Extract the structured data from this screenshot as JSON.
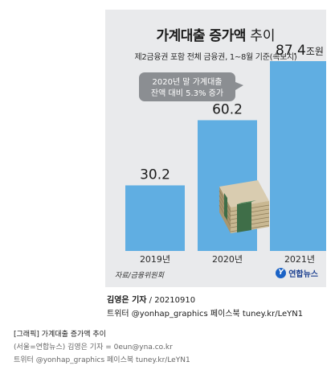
{
  "chart_data": {
    "type": "bar",
    "title_main": "가계대출 증가액",
    "title_suffix": "추이",
    "subtitle": "제2금융권 포함 전체 금융권, 1~8월 기준(속보치)",
    "categories": [
      "2019년",
      "2020년",
      "2021년"
    ],
    "values": [
      30.2,
      60.2,
      87.4
    ],
    "value_labels": [
      "30.2",
      "60.2",
      "87.4"
    ],
    "unit": "조원",
    "ylim": [
      0,
      100
    ],
    "annotation": [
      "2020년 말 가계대출",
      "잔액 대비 5.3% 증가"
    ],
    "bar_color": "#60aee2",
    "callout_color": "#8b8e92",
    "background_color": "#e9eaec",
    "grid": false,
    "legend": "none"
  },
  "source": "자료/금융위원회",
  "logo": {
    "mark": "Y",
    "text": "연합뉴스"
  },
  "credits": {
    "author_name": "김영은 기자",
    "author_date": " / 20210910",
    "social": "트위터 @yonhap_graphics  페이스북 tuney.kr/LeYN1"
  },
  "caption": {
    "title": "[그래픽] 가계대출 증가액 추이",
    "byline": "(서울=연합뉴스) 김영은 기자 = 0eun@yna.co.kr",
    "social": "트위터 @yonhap_graphics 페이스북 tuney.kr/LeYN1"
  }
}
